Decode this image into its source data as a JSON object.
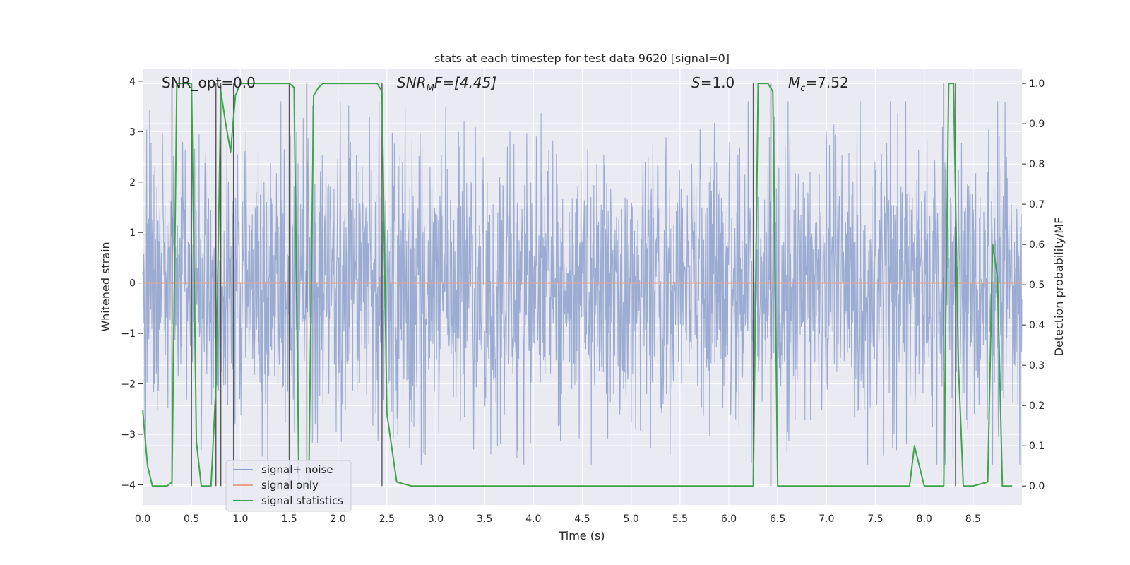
{
  "chart_data": {
    "type": "line",
    "title": "stats at each timestep for test data 9620 [signal=0]",
    "xlabel": "Time (s)",
    "ylabel": "Whitened strain",
    "y2label": "Detection probability/MF",
    "xlim": [
      0.0,
      9.0
    ],
    "ylim": [
      -4.4,
      4.25
    ],
    "y2lim": [
      -0.047,
      1.037
    ],
    "xticks": [
      "0.0",
      "0.5",
      "1.0",
      "1.5",
      "2.0",
      "2.5",
      "3.0",
      "3.5",
      "4.0",
      "4.5",
      "5.0",
      "5.5",
      "6.0",
      "6.5",
      "7.0",
      "7.5",
      "8.0",
      "8.5"
    ],
    "yticks": [
      "4",
      "3",
      "2",
      "1",
      "0",
      "−1",
      "−2",
      "−3",
      "−4"
    ],
    "y2ticks": [
      "1.0",
      "0.9",
      "0.8",
      "0.7",
      "0.6",
      "0.5",
      "0.4",
      "0.3",
      "0.2",
      "0.1",
      "0.0"
    ],
    "annotations": {
      "snr_opt": "SNR_opt=0.0",
      "snr_mf_base": "SNR",
      "snr_mf_sub": "M",
      "snr_mf_rest": "F=[4.45]",
      "s_base": "S",
      "s_rest": "=1.0",
      "mc_base": "M",
      "mc_sub": "c",
      "mc_rest": "=7.52"
    },
    "legend": {
      "placement": "lower-left",
      "entries": [
        "signal+ noise",
        "signal only",
        "signal statistics"
      ]
    },
    "series": [
      {
        "name": "signal+ noise",
        "axis": "left",
        "color": "#8da0cb",
        "description": "white noise strain, amplitude about ±1.5 typical, peaks to about ±3.5",
        "typical_amplitude": 1.5,
        "peak_amplitude": 3.6
      },
      {
        "name": "signal only",
        "axis": "left",
        "color": "#e8a48c",
        "x": [
          0.0,
          9.0
        ],
        "y": [
          0.0,
          0.0
        ]
      },
      {
        "name": "signal statistics",
        "axis": "right",
        "color": "#3fa34d",
        "x": [
          0.0,
          0.05,
          0.1,
          0.25,
          0.3,
          0.35,
          0.5,
          0.55,
          0.6,
          0.65,
          0.7,
          0.75,
          0.8,
          0.85,
          0.9,
          0.95,
          1.0,
          1.5,
          1.55,
          1.6,
          1.65,
          1.7,
          1.75,
          1.8,
          1.85,
          2.0,
          2.4,
          2.45,
          2.5,
          2.6,
          2.75,
          2.85,
          3.0,
          6.25,
          6.3,
          6.35,
          6.4,
          6.45,
          6.5,
          7.5,
          7.6,
          7.8,
          7.85,
          7.9,
          8.0,
          8.05,
          8.2,
          8.25,
          8.3,
          8.35,
          8.4,
          8.5,
          8.65,
          8.7,
          8.75,
          8.8,
          8.9
        ],
        "y": [
          0.19,
          0.05,
          0.0,
          0.0,
          0.01,
          1.0,
          1.0,
          0.11,
          0.0,
          0.0,
          0.0,
          0.25,
          0.98,
          0.9,
          0.83,
          0.97,
          1.0,
          1.0,
          0.99,
          0.0,
          0.0,
          0.0,
          0.97,
          0.99,
          1.0,
          1.0,
          1.0,
          0.98,
          0.18,
          0.01,
          0.0,
          0.0,
          0.0,
          0.0,
          1.0,
          1.0,
          1.0,
          0.98,
          0.0,
          0.0,
          0.0,
          0.0,
          0.0,
          0.1,
          0.0,
          0.0,
          0.0,
          1.0,
          1.0,
          0.3,
          0.0,
          0.0,
          0.01,
          0.6,
          0.52,
          0.0,
          0.0
        ]
      }
    ],
    "vertical_lines_x": [
      0.3,
      0.5,
      0.75,
      0.8,
      0.93,
      1.5,
      1.68,
      2.45,
      6.25,
      6.43,
      8.2,
      8.32
    ]
  },
  "colors": {
    "plot_bg": "#eaeaf2",
    "grid": "#ffffff",
    "noise": "#8da0cb",
    "signal_only": "#e8a48c",
    "stats": "#3fa34d",
    "vlines": "#555555"
  }
}
